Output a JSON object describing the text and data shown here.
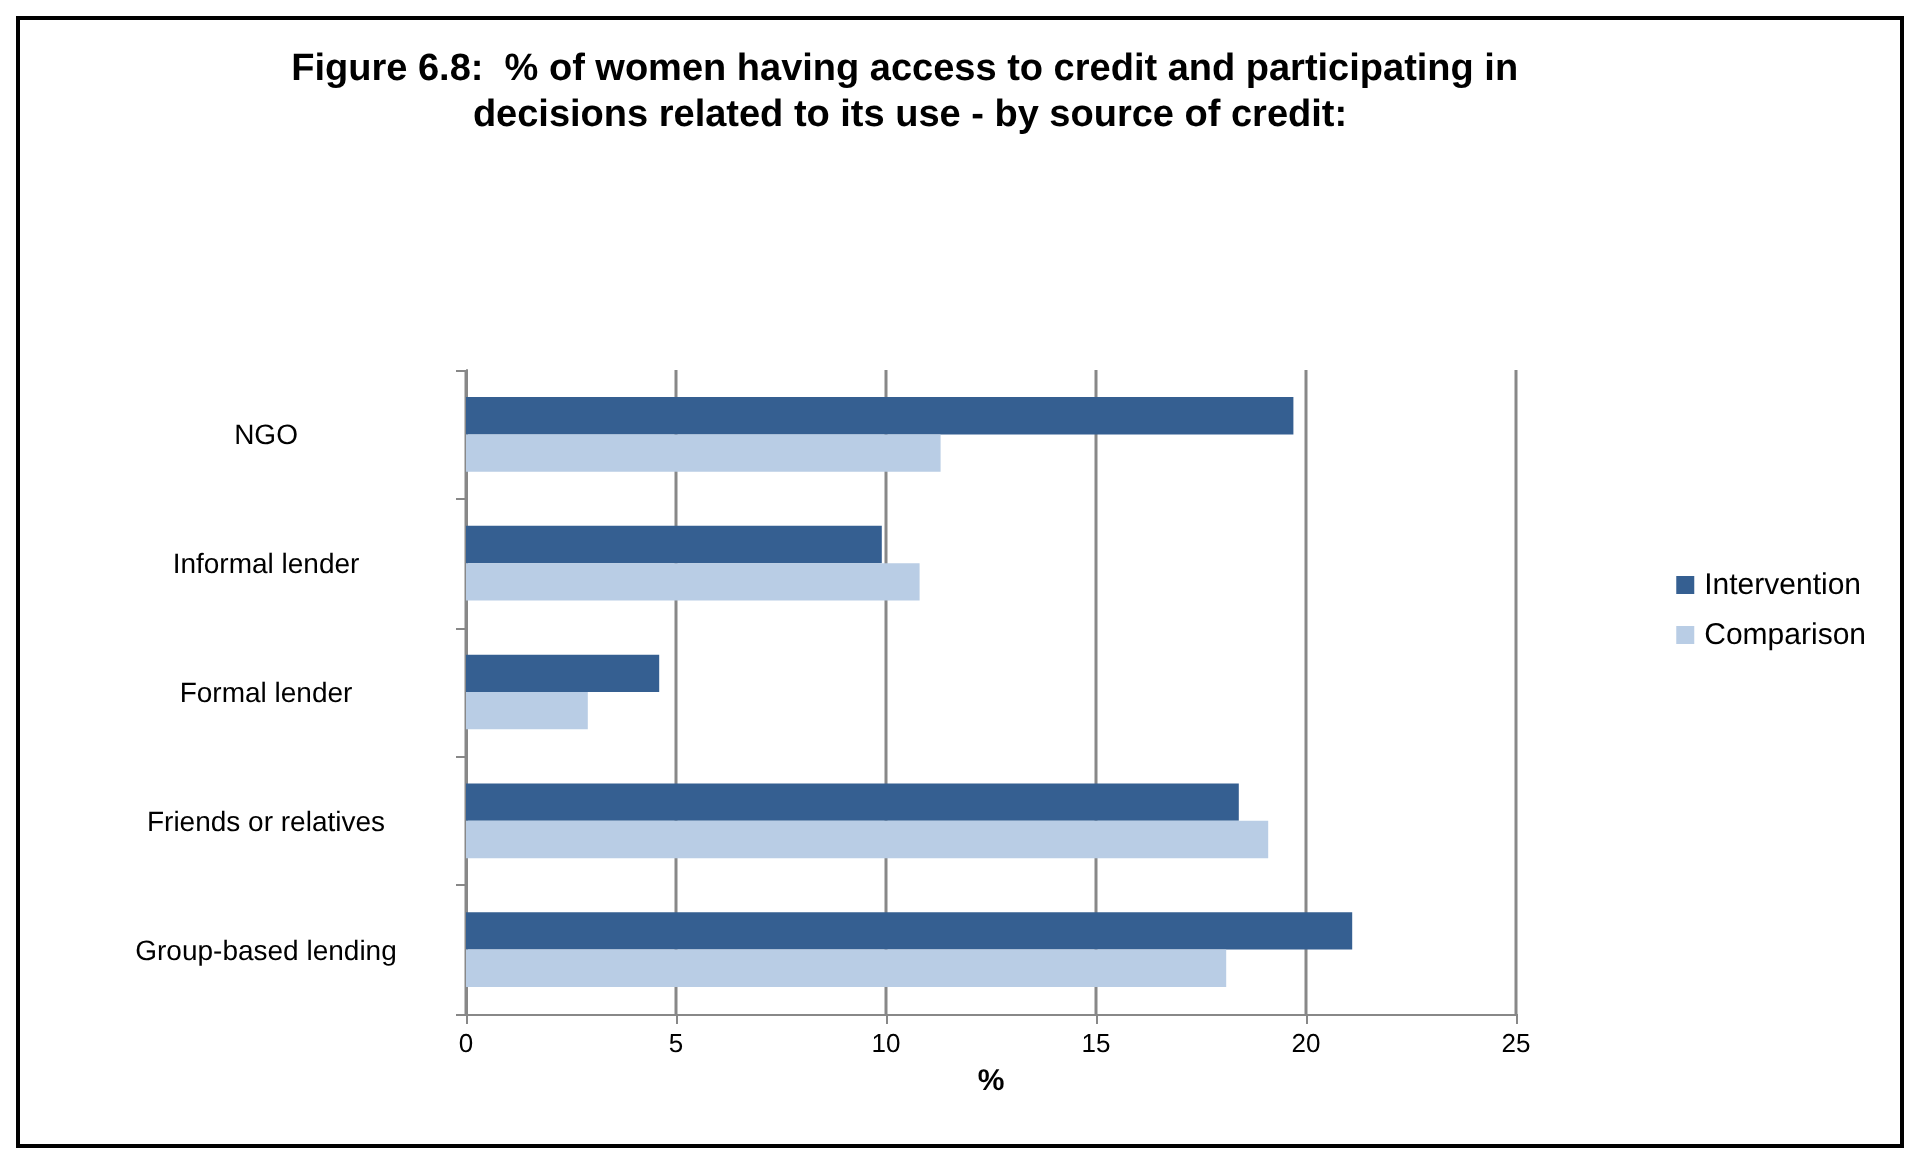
{
  "chart_data": {
    "type": "bar",
    "orientation": "horizontal",
    "title": "Figure 6.8:  % of women having access to credit and participating in decisions related to its use - by source of credit:",
    "xlabel": "%",
    "categories": [
      "NGO",
      "Informal lender",
      "Formal lender",
      "Friends or relatives",
      "Group-based lending"
    ],
    "series": [
      {
        "name": "Intervention",
        "color": "#355f91",
        "values": [
          19.7,
          9.9,
          4.6,
          18.4,
          21.1
        ]
      },
      {
        "name": "Comparison",
        "color": "#b9cde5",
        "values": [
          11.3,
          10.8,
          2.9,
          19.1,
          18.1
        ]
      }
    ],
    "xlim": [
      0,
      25
    ],
    "xticks": [
      0,
      5,
      10,
      15,
      20,
      25
    ],
    "grid": "x",
    "legend": "right"
  }
}
